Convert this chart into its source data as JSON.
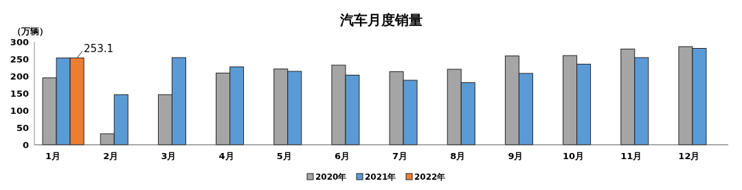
{
  "chart_data": {
    "type": "bar",
    "title": "汽车月度销量",
    "ylabel": "（万辆）",
    "categories": [
      "1月",
      "2月",
      "3月",
      "4月",
      "5月",
      "6月",
      "7月",
      "8月",
      "9月",
      "10月",
      "11月",
      "12月"
    ],
    "series": [
      {
        "name": "2020年",
        "color": "#a5a5a5",
        "values": [
          195,
          32,
          146,
          209,
          221,
          232,
          213,
          220,
          259,
          260,
          279,
          286
        ]
      },
      {
        "name": "2021年",
        "color": "#5b9bd5",
        "values": [
          253,
          146,
          254,
          227,
          214,
          203,
          188,
          181,
          208,
          235,
          254,
          281
        ]
      },
      {
        "name": "2022年",
        "color": "#ed7d31",
        "values": [
          253.1,
          null,
          null,
          null,
          null,
          null,
          null,
          null,
          null,
          null,
          null,
          null
        ],
        "value_labels": [
          "253.1",
          null,
          null,
          null,
          null,
          null,
          null,
          null,
          null,
          null,
          null,
          null
        ]
      }
    ],
    "ylim": [
      0,
      300
    ],
    "yticks": [
      0,
      50,
      100,
      150,
      200,
      250,
      300
    ],
    "grid": false,
    "legend": "bottom"
  }
}
